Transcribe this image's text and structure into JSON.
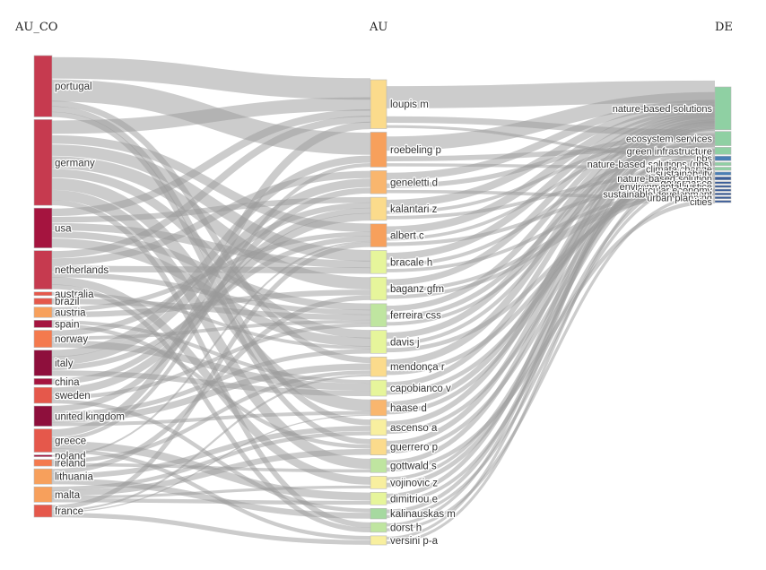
{
  "chart_data": {
    "type": "sankey",
    "columns": [
      "AU_CO",
      "AU",
      "DE"
    ],
    "colors": {
      "crimson": "#c63a4f",
      "deep_red": "#a5143f",
      "dark_maroon": "#8e0f3c",
      "red_orange": "#e5584b",
      "orange": "#f47a4e",
      "light_orange": "#f7a05c",
      "peach": "#f9b66e",
      "light_yellow": "#fbdb8c",
      "pale_yellow": "#f8ef9f",
      "yellow_green": "#e6f59b",
      "light_green": "#bfe5a0",
      "green": "#a6d9a0",
      "teal_green": "#8fd0a3",
      "blue": "#4a7fb5",
      "navy": "#3a5d99",
      "link": "#9a9a9a"
    },
    "left_nodes": [
      {
        "name": "portugal",
        "size": 10,
        "color": "crimson"
      },
      {
        "name": "germany",
        "size": 14,
        "color": "crimson"
      },
      {
        "name": "usa",
        "size": 6.5,
        "color": "deep_red"
      },
      {
        "name": "netherlands",
        "size": 6.3,
        "color": "crimson"
      },
      {
        "name": "australia",
        "size": 0.6,
        "color": "red_orange"
      },
      {
        "name": "brazil",
        "size": 1,
        "color": "red_orange"
      },
      {
        "name": "austria",
        "size": 1.7,
        "color": "light_orange"
      },
      {
        "name": "spain",
        "size": 1.2,
        "color": "deep_red"
      },
      {
        "name": "norway",
        "size": 2.8,
        "color": "orange"
      },
      {
        "name": "italy",
        "size": 4.2,
        "color": "dark_maroon"
      },
      {
        "name": "china",
        "size": 1,
        "color": "deep_red"
      },
      {
        "name": "sweden",
        "size": 2.6,
        "color": "red_orange"
      },
      {
        "name": "united kingdom",
        "size": 3.3,
        "color": "dark_maroon"
      },
      {
        "name": "greece",
        "size": 3.8,
        "color": "red_orange"
      },
      {
        "name": "poland",
        "size": 0.3,
        "color": "deep_red"
      },
      {
        "name": "ireland",
        "size": 1.1,
        "color": "orange"
      },
      {
        "name": "lithuania",
        "size": 2.5,
        "color": "light_orange"
      },
      {
        "name": "malta",
        "size": 2.5,
        "color": "light_orange"
      },
      {
        "name": "france",
        "size": 2,
        "color": "red_orange"
      }
    ],
    "middle_nodes": [
      {
        "name": "loupis m",
        "size": 7,
        "color": "light_yellow"
      },
      {
        "name": "roebeling p",
        "size": 5,
        "color": "light_orange"
      },
      {
        "name": "geneletti d",
        "size": 3.3,
        "color": "peach"
      },
      {
        "name": "kalantari z",
        "size": 3.3,
        "color": "light_yellow"
      },
      {
        "name": "albert c",
        "size": 3.3,
        "color": "light_orange"
      },
      {
        "name": "bracale h",
        "size": 3.3,
        "color": "yellow_green"
      },
      {
        "name": "baganz gfm",
        "size": 3.3,
        "color": "yellow_green"
      },
      {
        "name": "ferreira css",
        "size": 3.3,
        "color": "light_green"
      },
      {
        "name": "davis j",
        "size": 3.3,
        "color": "yellow_green"
      },
      {
        "name": "mendonça r",
        "size": 2.8,
        "color": "light_yellow"
      },
      {
        "name": "capobianco v",
        "size": 2.3,
        "color": "yellow_green"
      },
      {
        "name": "haase d",
        "size": 2.3,
        "color": "peach"
      },
      {
        "name": "ascenso a",
        "size": 2.3,
        "color": "pale_yellow"
      },
      {
        "name": "guerrero p",
        "size": 2.3,
        "color": "light_yellow"
      },
      {
        "name": "gottwald s",
        "size": 2,
        "color": "light_green"
      },
      {
        "name": "vojinovic z",
        "size": 1.8,
        "color": "pale_yellow"
      },
      {
        "name": "dimitriou e",
        "size": 1.8,
        "color": "yellow_green"
      },
      {
        "name": "kalinauskas m",
        "size": 1.5,
        "color": "green"
      },
      {
        "name": "dorst h",
        "size": 1.4,
        "color": "light_green"
      },
      {
        "name": "versini p-a",
        "size": 1.3,
        "color": "pale_yellow"
      }
    ],
    "right_nodes": [
      {
        "name": "nature-based solutions",
        "size": 12,
        "color": "teal_green"
      },
      {
        "name": "ecosystem services",
        "size": 4,
        "color": "teal_green"
      },
      {
        "name": "green infrastructure",
        "size": 2,
        "color": "teal_green"
      },
      {
        "name": "nbs",
        "size": 1.3,
        "color": "blue"
      },
      {
        "name": "nature-based solutions (nbs)",
        "size": 0.9,
        "color": "teal_green"
      },
      {
        "name": "climate change",
        "size": 0.9,
        "color": "teal_green"
      },
      {
        "name": "sustainability",
        "size": 0.9,
        "color": "blue"
      },
      {
        "name": "nature-based solution",
        "size": 0.9,
        "color": "navy"
      },
      {
        "name": "governance",
        "size": 0.6,
        "color": "navy"
      },
      {
        "name": "environmental justice",
        "size": 0.6,
        "color": "navy"
      },
      {
        "name": "circular economy",
        "size": 0.6,
        "color": "navy"
      },
      {
        "name": "sustainable development",
        "size": 0.6,
        "color": "navy"
      },
      {
        "name": "urban planning",
        "size": 0.6,
        "color": "navy"
      },
      {
        "name": "cities",
        "size": 0.6,
        "color": "navy"
      }
    ],
    "links_left_middle": [
      [
        "portugal",
        "loupis m",
        4
      ],
      [
        "portugal",
        "roebeling p",
        3.4
      ],
      [
        "portugal",
        "mendonça r",
        0.9
      ],
      [
        "portugal",
        "ascenso a",
        0.9
      ],
      [
        "portugal",
        "guerrero p",
        0.8
      ],
      [
        "germany",
        "loupis m",
        2.5
      ],
      [
        "germany",
        "haase d",
        2
      ],
      [
        "germany",
        "bracale h",
        2
      ],
      [
        "germany",
        "baganz gfm",
        2
      ],
      [
        "germany",
        "gottwald s",
        1.6
      ],
      [
        "germany",
        "dorst h",
        0.9
      ],
      [
        "germany",
        "albert c",
        1.5
      ],
      [
        "germany",
        "davis j",
        1.5
      ],
      [
        "usa",
        "davis j",
        1.6
      ],
      [
        "usa",
        "kalantari z",
        1
      ],
      [
        "usa",
        "loupis m",
        1.4
      ],
      [
        "usa",
        "ferreira css",
        1.2
      ],
      [
        "usa",
        "bracale h",
        1.3
      ],
      [
        "netherlands",
        "vojinovic z",
        1.1
      ],
      [
        "netherlands",
        "dorst h",
        0.8
      ],
      [
        "netherlands",
        "geneletti d",
        1.1
      ],
      [
        "netherlands",
        "loupis m",
        1.3
      ],
      [
        "netherlands",
        "bracale h",
        1.1
      ],
      [
        "netherlands",
        "ferreira css",
        0.9
      ],
      [
        "australia",
        "davis j",
        0.6
      ],
      [
        "brazil",
        "ferreira css",
        1
      ],
      [
        "austria",
        "baganz gfm",
        0.9
      ],
      [
        "austria",
        "albert c",
        0.8
      ],
      [
        "spain",
        "capobianco v",
        0.6
      ],
      [
        "spain",
        "guerrero p",
        0.6
      ],
      [
        "norway",
        "capobianco v",
        1.2
      ],
      [
        "norway",
        "kalantari z",
        1
      ],
      [
        "norway",
        "ferreira css",
        0.6
      ],
      [
        "italy",
        "geneletti d",
        1.3
      ],
      [
        "italy",
        "capobianco v",
        0.9
      ],
      [
        "italy",
        "roebeling p",
        1.1
      ],
      [
        "italy",
        "albert c",
        0.9
      ],
      [
        "china",
        "kalantari z",
        1
      ],
      [
        "sweden",
        "kalantari z",
        1.3
      ],
      [
        "sweden",
        "ferreira css",
        0.7
      ],
      [
        "sweden",
        "kalinauskas m",
        0.6
      ],
      [
        "united kingdom",
        "haase d",
        0.6
      ],
      [
        "united kingdom",
        "mendonça r",
        1
      ],
      [
        "united kingdom",
        "davis j",
        0.8
      ],
      [
        "united kingdom",
        "geneletti d",
        0.9
      ],
      [
        "greece",
        "loupis m",
        1.4
      ],
      [
        "greece",
        "dimitriou e",
        1.2
      ],
      [
        "greece",
        "versini p-a",
        0.6
      ],
      [
        "greece",
        "roebeling p",
        0.6
      ],
      [
        "poland",
        "albert c",
        0.3
      ],
      [
        "ireland",
        "mendonça r",
        0.6
      ],
      [
        "ireland",
        "gottwald s",
        0.5
      ],
      [
        "lithuania",
        "kalinauskas m",
        0.9
      ],
      [
        "lithuania",
        "ascenso a",
        0.8
      ],
      [
        "lithuania",
        "baganz gfm",
        0.8
      ],
      [
        "malta",
        "dimitriou e",
        0.6
      ],
      [
        "malta",
        "guerrero p",
        0.9
      ],
      [
        "malta",
        "ascenso a",
        0.6
      ],
      [
        "malta",
        "vojinovic z",
        0.4
      ],
      [
        "france",
        "versini p-a",
        0.7
      ],
      [
        "france",
        "albert c",
        0.8
      ],
      [
        "france",
        "mendonça r",
        0.3
      ],
      [
        "france",
        "haase d",
        0.2
      ]
    ],
    "links_middle_right": [
      [
        "loupis m",
        "nature-based solutions",
        2.5
      ],
      [
        "loupis m",
        "ecosystem services",
        0.7
      ],
      [
        "loupis m",
        "nbs",
        0.3
      ],
      [
        "roebeling p",
        "nature-based solutions",
        1.5
      ],
      [
        "roebeling p",
        "green infrastructure",
        0.5
      ],
      [
        "roebeling p",
        "climate change",
        0.3
      ],
      [
        "geneletti d",
        "nature-based solutions",
        0.8
      ],
      [
        "geneletti d",
        "ecosystem services",
        0.5
      ],
      [
        "geneletti d",
        "urban planning",
        0.3
      ],
      [
        "kalantari z",
        "nature-based solutions",
        0.7
      ],
      [
        "kalantari z",
        "sustainability",
        0.3
      ],
      [
        "kalantari z",
        "ecosystem services",
        0.3
      ],
      [
        "albert c",
        "nature-based solutions",
        0.7
      ],
      [
        "albert c",
        "governance",
        0.3
      ],
      [
        "albert c",
        "ecosystem services",
        0.3
      ],
      [
        "bracale h",
        "nature-based solutions",
        0.6
      ],
      [
        "bracale h",
        "circular economy",
        0.3
      ],
      [
        "bracale h",
        "green infrastructure",
        0.3
      ],
      [
        "baganz gfm",
        "nature-based solutions",
        0.5
      ],
      [
        "baganz gfm",
        "circular economy",
        0.3
      ],
      [
        "baganz gfm",
        "sustainable development",
        0.3
      ],
      [
        "ferreira css",
        "nature-based solutions",
        0.5
      ],
      [
        "ferreira css",
        "ecosystem services",
        0.4
      ],
      [
        "ferreira css",
        "nbs",
        0.3
      ],
      [
        "davis j",
        "nature-based solutions",
        0.5
      ],
      [
        "davis j",
        "environmental justice",
        0.3
      ],
      [
        "davis j",
        "ecosystem services",
        0.3
      ],
      [
        "mendonça r",
        "nature-based solutions",
        0.5
      ],
      [
        "mendonça r",
        "nature-based solution",
        0.3
      ],
      [
        "capobianco v",
        "nature-based solutions",
        0.4
      ],
      [
        "capobianco v",
        "climate change",
        0.3
      ],
      [
        "haase d",
        "ecosystem services",
        0.4
      ],
      [
        "haase d",
        "green infrastructure",
        0.3
      ],
      [
        "ascenso a",
        "nature-based solutions",
        0.4
      ],
      [
        "ascenso a",
        "nature-based solutions (nbs)",
        0.3
      ],
      [
        "guerrero p",
        "nature-based solutions",
        0.4
      ],
      [
        "guerrero p",
        "nature-based solutions (nbs)",
        0.3
      ],
      [
        "gottwald s",
        "nature-based solutions",
        0.4
      ],
      [
        "gottwald s",
        "cities",
        0.3
      ],
      [
        "vojinovic z",
        "nbs",
        0.4
      ],
      [
        "vojinovic z",
        "green infrastructure",
        0.3
      ],
      [
        "dimitriou e",
        "nature-based solutions",
        0.4
      ],
      [
        "dimitriou e",
        "sustainability",
        0.3
      ],
      [
        "kalinauskas m",
        "ecosystem services",
        0.4
      ],
      [
        "kalinauskas m",
        "nature-based solution",
        0.3
      ],
      [
        "dorst h",
        "nature-based solutions",
        0.3
      ],
      [
        "dorst h",
        "sustainable development",
        0.3
      ],
      [
        "versini p-a",
        "nature-based solutions",
        0.3
      ],
      [
        "versini p-a",
        "nature-based solutions (nbs)",
        0.3
      ]
    ]
  }
}
